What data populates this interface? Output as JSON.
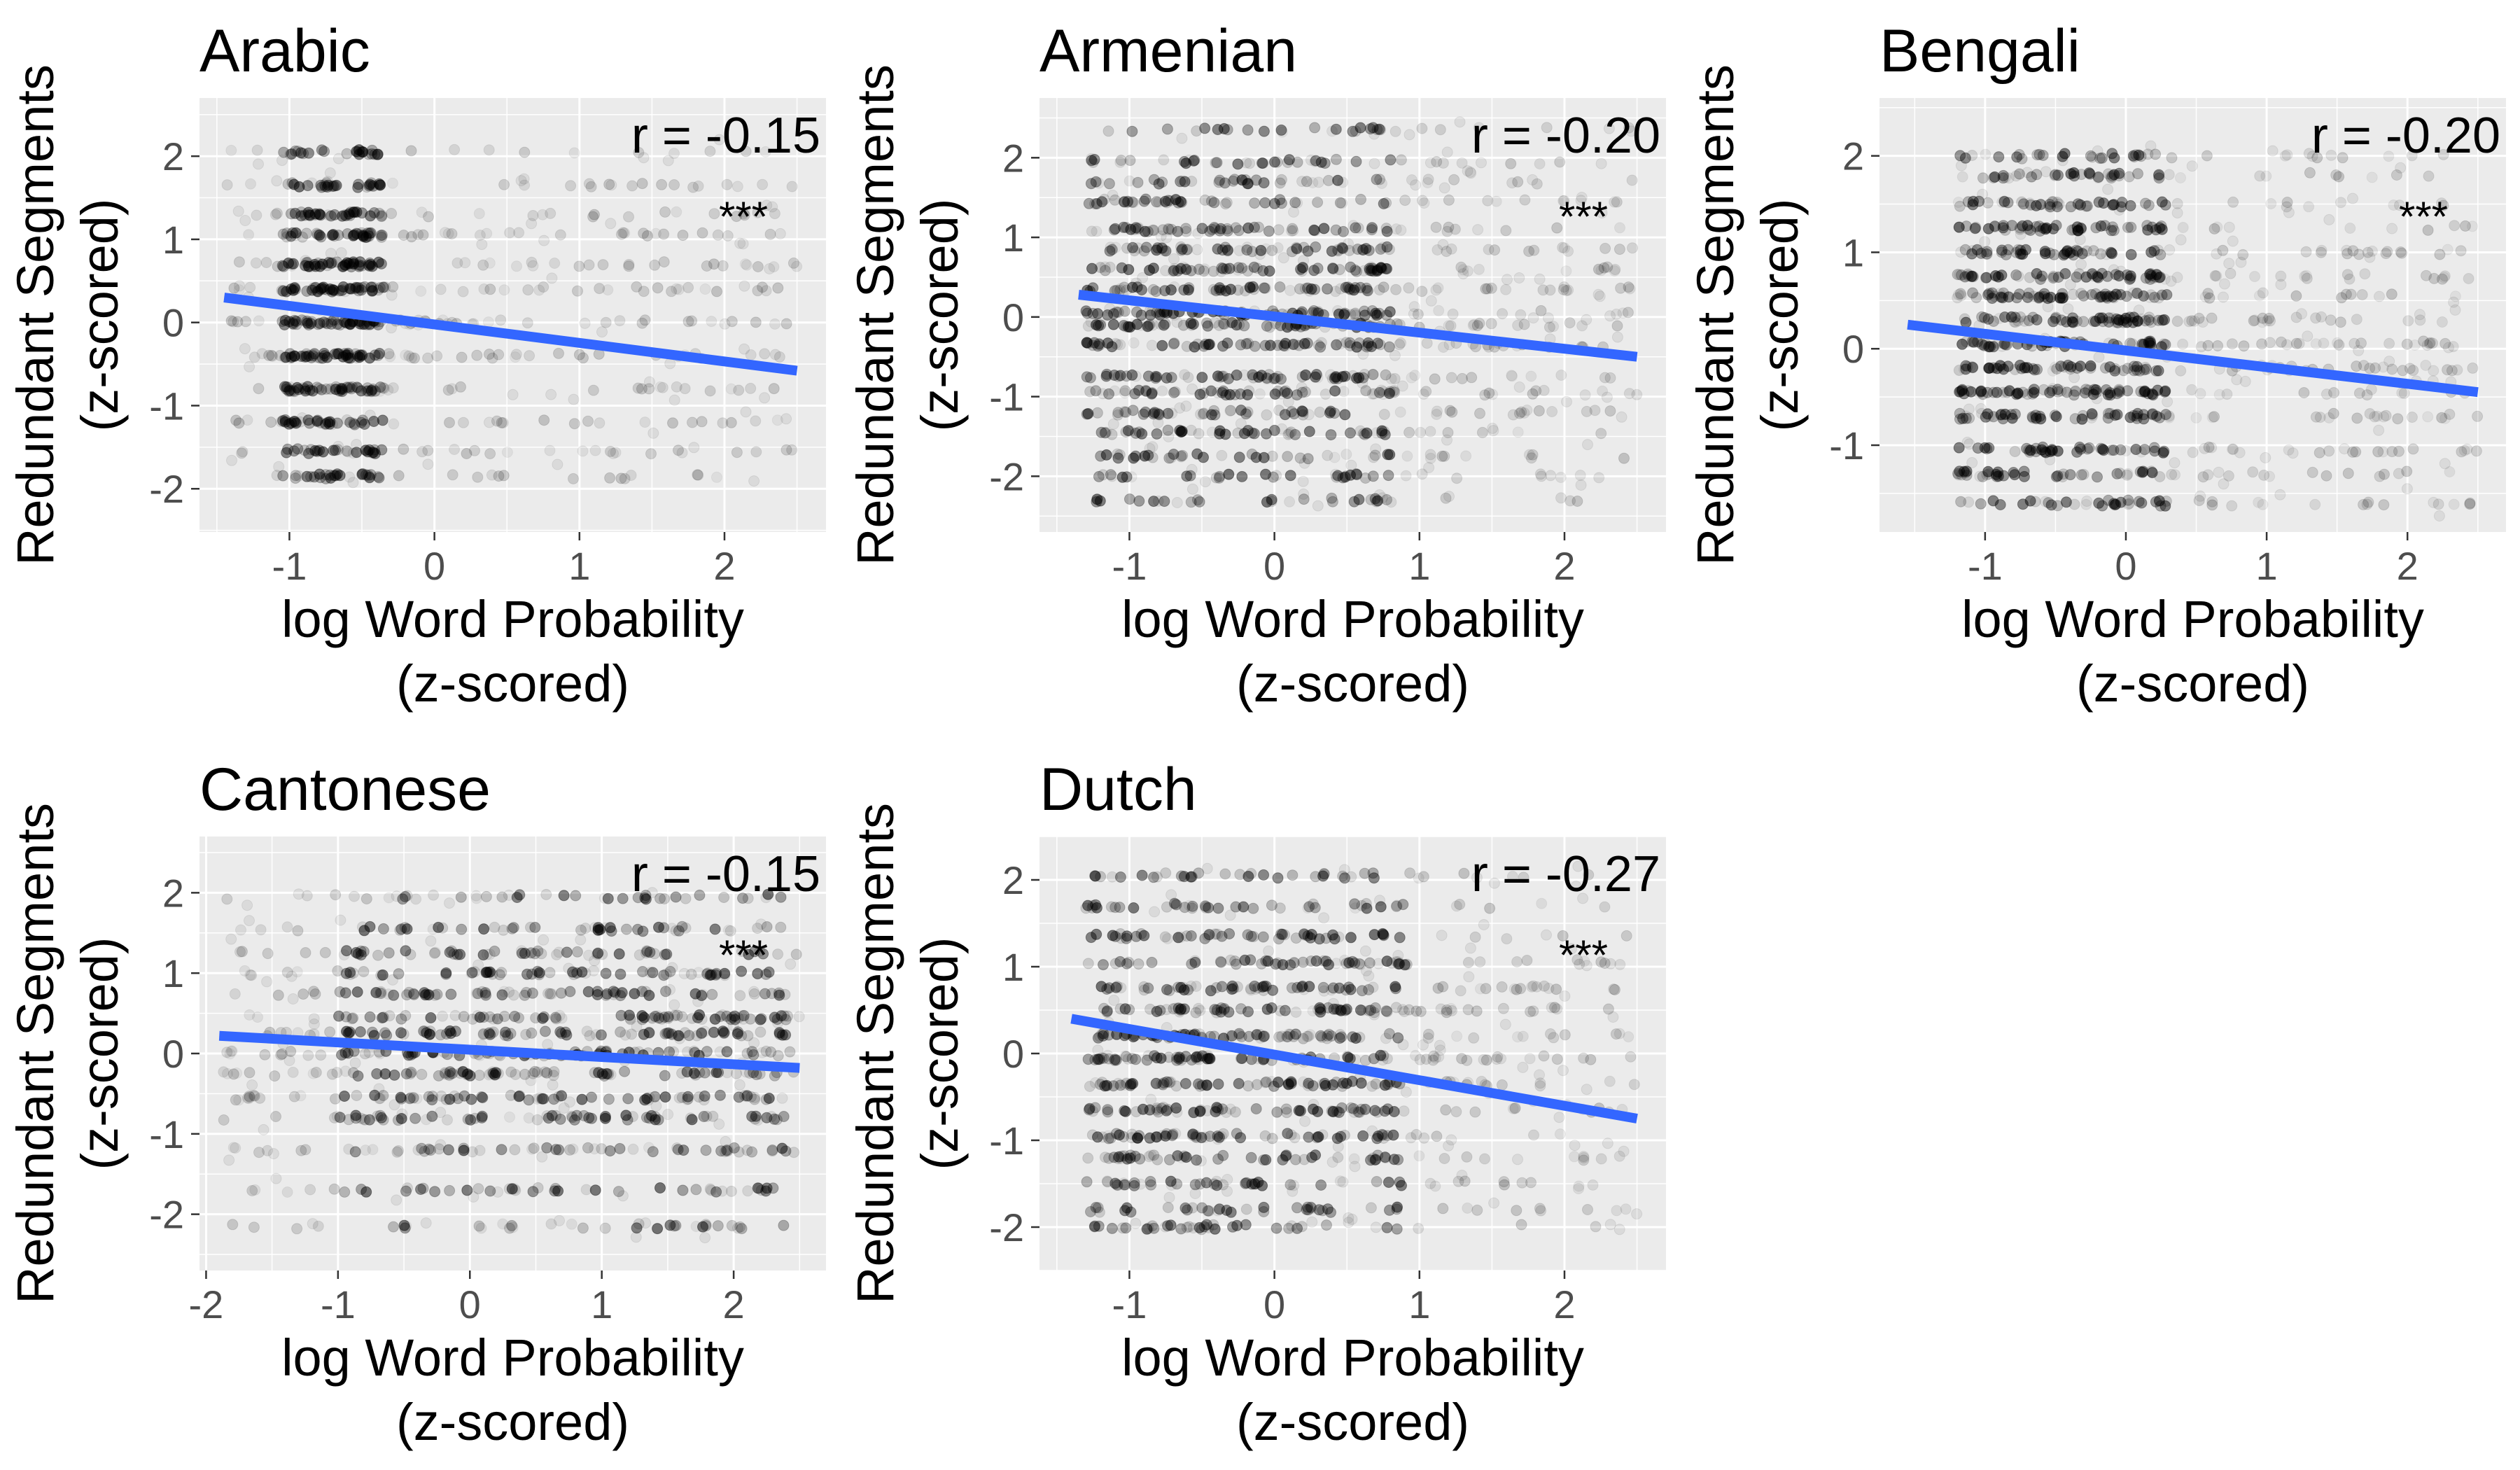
{
  "colors": {
    "panel_bg": "#EBEBEB",
    "grid": "#FFFFFF",
    "point": "#000000",
    "fit_line": "#3366FF",
    "text": "#000000",
    "tick_text": "#4D4D4D"
  },
  "chart_data": [
    {
      "type": "scatter",
      "title": "Arabic",
      "xlabel": "log Word Probability\n(z-scored)",
      "ylabel": "Redundant Segments\n(z-scored)",
      "xlim": [
        -1.62,
        2.7
      ],
      "ylim": [
        -2.52,
        2.7
      ],
      "xticks": [
        -1,
        0,
        1,
        2
      ],
      "yticks": [
        -2,
        -1,
        0,
        1,
        2
      ],
      "grid": true,
      "annotation": {
        "r_label": "r = -0.15",
        "signif": "***"
      },
      "fit_line": {
        "x": [
          -1.45,
          2.5
        ],
        "y": [
          0.3,
          -0.58
        ]
      },
      "y_levels": [
        -1.85,
        -1.55,
        -1.2,
        -0.8,
        -0.4,
        0.0,
        0.4,
        0.7,
        1.05,
        1.3,
        1.65,
        2.05
      ],
      "x_range": [
        -1.45,
        2.5
      ],
      "dense_region": [
        -1.05,
        -0.35
      ]
    },
    {
      "type": "scatter",
      "title": "Armenian",
      "xlabel": "log Word Probability\n(z-scored)",
      "ylabel": "Redundant Segments\n(z-scored)",
      "xlim": [
        -1.62,
        2.7
      ],
      "ylim": [
        -2.7,
        2.75
      ],
      "xticks": [
        -1,
        0,
        1,
        2
      ],
      "yticks": [
        -2,
        -1,
        0,
        1,
        2
      ],
      "grid": true,
      "annotation": {
        "r_label": "r = -0.20",
        "signif": "***"
      },
      "fit_line": {
        "x": [
          -1.35,
          2.5
        ],
        "y": [
          0.28,
          -0.5
        ]
      },
      "y_levels": [
        -2.3,
        -2.0,
        -1.75,
        -1.45,
        -1.2,
        -0.95,
        -0.75,
        -0.35,
        -0.1,
        0.05,
        0.35,
        0.6,
        0.85,
        1.1,
        1.45,
        1.7,
        1.95,
        2.35
      ],
      "x_range": [
        -1.3,
        2.5
      ],
      "dense_region": [
        -1.3,
        0.8
      ]
    },
    {
      "type": "scatter",
      "title": "Bengali",
      "xlabel": "log Word Probability\n(z-scored)",
      "ylabel": "Redundant Segments\n(z-scored)",
      "xlim": [
        -1.75,
        2.7
      ],
      "ylim": [
        -1.9,
        2.6
      ],
      "xticks": [
        -1,
        0,
        1,
        2
      ],
      "yticks": [
        -1,
        0,
        1,
        2
      ],
      "grid": true,
      "annotation": {
        "r_label": "r = -0.20",
        "signif": "***"
      },
      "fit_line": {
        "x": [
          -1.55,
          2.5
        ],
        "y": [
          0.25,
          -0.45
        ]
      },
      "y_levels": [
        -1.6,
        -1.3,
        -1.05,
        -0.7,
        -0.45,
        -0.2,
        0.05,
        0.3,
        0.55,
        0.75,
        1.0,
        1.25,
        1.5,
        1.8,
        2.0
      ],
      "x_range": [
        -1.2,
        2.5
      ],
      "dense_region": [
        -1.2,
        0.3
      ]
    },
    {
      "type": "scatter",
      "title": "Cantonese",
      "xlabel": "log Word Probability\n(z-scored)",
      "ylabel": "Redundant Segments\n(z-scored)",
      "xlim": [
        -2.05,
        2.7
      ],
      "ylim": [
        -2.7,
        2.7
      ],
      "xticks": [
        -2,
        -1,
        0,
        1,
        2
      ],
      "yticks": [
        -2,
        -1,
        0,
        1,
        2
      ],
      "grid": true,
      "annotation": {
        "r_label": "r = -0.15",
        "signif": "***"
      },
      "fit_line": {
        "x": [
          -1.9,
          2.5
        ],
        "y": [
          0.22,
          -0.18
        ]
      },
      "y_levels": [
        -2.15,
        -1.7,
        -1.2,
        -0.8,
        -0.55,
        -0.25,
        0.0,
        0.25,
        0.45,
        0.75,
        1.0,
        1.25,
        1.55,
        1.95
      ],
      "x_range": [
        -1.9,
        2.5
      ],
      "dense_region": [
        -1.0,
        2.4
      ]
    },
    {
      "type": "scatter",
      "title": "Dutch",
      "xlabel": "log Word Probability\n(z-scored)",
      "ylabel": "Redundant Segments\n(z-scored)",
      "xlim": [
        -1.62,
        2.7
      ],
      "ylim": [
        -2.5,
        2.5
      ],
      "xticks": [
        -1,
        0,
        1,
        2
      ],
      "yticks": [
        -2,
        -1,
        0,
        1,
        2
      ],
      "grid": true,
      "annotation": {
        "r_label": "r = -0.27",
        "signif": "***"
      },
      "fit_line": {
        "x": [
          -1.4,
          2.5
        ],
        "y": [
          0.4,
          -0.75
        ]
      },
      "y_levels": [
        -2.0,
        -1.8,
        -1.5,
        -1.2,
        -0.95,
        -0.65,
        -0.35,
        -0.05,
        0.2,
        0.5,
        0.75,
        1.05,
        1.35,
        1.7,
        2.05
      ],
      "x_range": [
        -1.3,
        2.5
      ],
      "dense_region": [
        -1.3,
        0.9
      ]
    }
  ]
}
